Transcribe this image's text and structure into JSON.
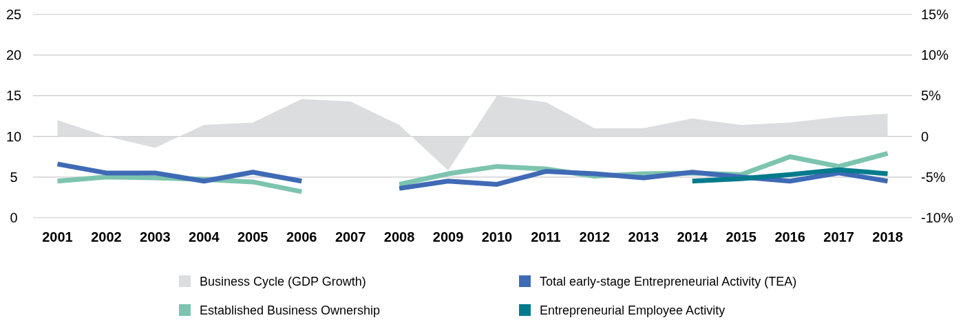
{
  "chart_data": {
    "type": "line",
    "categories": [
      "2001",
      "2002",
      "2003",
      "2004",
      "2005",
      "2006",
      "2007",
      "2008",
      "2009",
      "2010",
      "2011",
      "2012",
      "2013",
      "2014",
      "2015",
      "2016",
      "2017",
      "2018"
    ],
    "ylim": [
      0,
      25
    ],
    "yticks": [
      0,
      5,
      10,
      15,
      20,
      25
    ],
    "y2lim": [
      -10,
      15
    ],
    "y2ticks": [
      {
        "value": -10,
        "label": "-10%"
      },
      {
        "value": -5,
        "label": "-5%"
      },
      0,
      {
        "value": 5,
        "label": "5%"
      },
      {
        "value": 10,
        "label": "10%"
      },
      {
        "value": 15,
        "label": "15%"
      }
    ],
    "grid": "y",
    "legend": "bottom",
    "marker": "none",
    "line_style": "solid",
    "series": [
      {
        "name": "Business Cycle (GDP Growth)",
        "type": "area",
        "axis": "y2",
        "color": "#dcdddf",
        "values": [
          2.0,
          0.0,
          -1.4,
          1.4,
          1.7,
          4.6,
          4.3,
          1.4,
          -4.2,
          5.0,
          4.2,
          1.0,
          1.0,
          2.2,
          1.4,
          1.7,
          2.4,
          2.8
        ]
      },
      {
        "name": "Established Business Ownership",
        "color": "#7cc4ae",
        "values": [
          4.5,
          5.0,
          4.9,
          4.7,
          4.4,
          3.2,
          null,
          4.1,
          5.4,
          6.3,
          6.0,
          5.1,
          5.4,
          5.5,
          5.3,
          7.5,
          6.3,
          7.9
        ]
      },
      {
        "name": "Total early-stage Entrepreneurial Activity (TEA)",
        "color": "#3f6ab5",
        "values": [
          6.6,
          5.5,
          5.5,
          4.5,
          5.6,
          4.5,
          null,
          3.6,
          4.5,
          4.1,
          5.7,
          5.4,
          4.9,
          5.6,
          5.0,
          4.5,
          5.5,
          4.5
        ]
      },
      {
        "name": "Entrepreneurial Employee Activity",
        "color": "#047b8c",
        "values": [
          null,
          null,
          null,
          null,
          null,
          null,
          null,
          null,
          null,
          null,
          null,
          null,
          null,
          4.5,
          4.8,
          5.3,
          5.9,
          5.4
        ]
      }
    ]
  }
}
